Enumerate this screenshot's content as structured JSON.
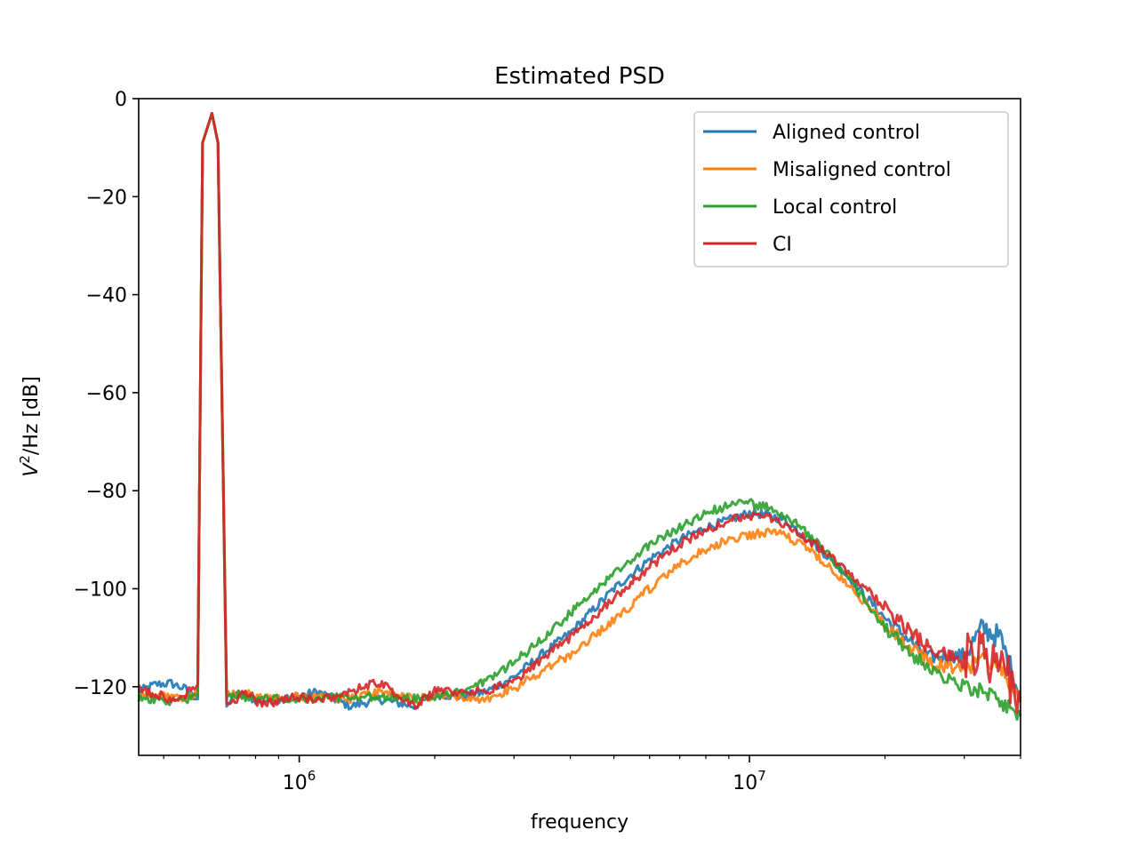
{
  "chart_data": {
    "type": "line",
    "title": "Estimated PSD",
    "xlabel": "frequency",
    "ylabel": "V²/Hz [dB]",
    "ylabel_parts": {
      "base": "V",
      "sup": "2",
      "rest": "/Hz [dB]"
    },
    "xscale": "log",
    "xlim": [
      440000,
      40000000
    ],
    "ylim": [
      -134,
      0
    ],
    "grid": false,
    "legend_position": "top-right",
    "x_major_ticks": [
      {
        "value": 1000000,
        "base": "10",
        "exp": "6"
      },
      {
        "value": 10000000,
        "base": "10",
        "exp": "7"
      }
    ],
    "y_ticks": [
      0,
      -20,
      -40,
      -60,
      -80,
      -100,
      -120
    ],
    "y_tick_labels": [
      "0",
      "−20",
      "−40",
      "−60",
      "−80",
      "−100",
      "−120"
    ],
    "series": [
      {
        "name": "Aligned control",
        "color": "#1f77b4",
        "x": [
          440000,
          480000,
          520000,
          560000,
          595000,
          610000,
          640000,
          660000,
          690000,
          720000,
          760000,
          820000,
          900000,
          1000000,
          1100000,
          1300000,
          1500000,
          1800000,
          2000000,
          2300000,
          2600000,
          3000000,
          3500000,
          4000000,
          5000000,
          6000000,
          7000000,
          8000000,
          9000000,
          10000000,
          11000000,
          12000000,
          14000000,
          16000000,
          20000000,
          25000000,
          30000000,
          33000000,
          36000000,
          40000000
        ],
        "y": [
          -121,
          -119.5,
          -119.3,
          -120.5,
          -122.5,
          -9,
          -3,
          -9,
          -124,
          -121.5,
          -122,
          -123,
          -122.5,
          -122,
          -121,
          -124,
          -122.5,
          -124,
          -121.5,
          -122,
          -121,
          -118,
          -113,
          -109,
          -100,
          -94,
          -90,
          -87.5,
          -86,
          -84.5,
          -85,
          -86,
          -91,
          -96,
          -106,
          -114,
          -113.5,
          -108,
          -110,
          -122
        ]
      },
      {
        "name": "Misaligned control",
        "color": "#ff7f0e",
        "x": [
          440000,
          480000,
          520000,
          560000,
          595000,
          610000,
          640000,
          660000,
          690000,
          720000,
          760000,
          820000,
          900000,
          1000000,
          1100000,
          1300000,
          1500000,
          1800000,
          2000000,
          2300000,
          2600000,
          3000000,
          3500000,
          4000000,
          5000000,
          6000000,
          7000000,
          8000000,
          9000000,
          10000000,
          11000000,
          12000000,
          14000000,
          16000000,
          20000000,
          25000000,
          30000000,
          33000000,
          36000000,
          40000000
        ],
        "y": [
          -121.5,
          -121.5,
          -122.5,
          -122,
          -121.5,
          -9,
          -3,
          -9,
          -121,
          -121,
          -121.5,
          -122,
          -122.5,
          -122,
          -122,
          -122.5,
          -121,
          -122.5,
          -122,
          -122,
          -122.5,
          -120.5,
          -116.5,
          -113.5,
          -106.5,
          -100,
          -95,
          -92,
          -90,
          -89,
          -88.5,
          -89,
          -93,
          -98,
          -107,
          -115,
          -117,
          -114,
          -116,
          -123
        ]
      },
      {
        "name": "Local control",
        "color": "#2ca02c",
        "x": [
          440000,
          480000,
          520000,
          560000,
          595000,
          610000,
          640000,
          660000,
          690000,
          720000,
          760000,
          820000,
          900000,
          1000000,
          1100000,
          1300000,
          1500000,
          1800000,
          2000000,
          2300000,
          2600000,
          3000000,
          3500000,
          4000000,
          5000000,
          6000000,
          7000000,
          8000000,
          9000000,
          10000000,
          11000000,
          12000000,
          14000000,
          16000000,
          20000000,
          25000000,
          30000000,
          33000000,
          36000000,
          40000000
        ],
        "y": [
          -122.5,
          -122.8,
          -123,
          -122.5,
          -122,
          -9,
          -3,
          -9,
          -122,
          -121.5,
          -122,
          -122.5,
          -122,
          -122.5,
          -122,
          -122.5,
          -122,
          -122.5,
          -122,
          -121,
          -119,
          -115,
          -110,
          -105,
          -97,
          -91,
          -87.5,
          -84.5,
          -83,
          -82.5,
          -83.5,
          -85,
          -90,
          -96,
          -108,
          -116.5,
          -120,
          -121,
          -123,
          -126
        ]
      },
      {
        "name": "CI",
        "color": "#d62728",
        "x": [
          440000,
          480000,
          520000,
          560000,
          595000,
          610000,
          640000,
          660000,
          690000,
          720000,
          760000,
          820000,
          900000,
          1000000,
          1100000,
          1300000,
          1500000,
          1800000,
          2000000,
          2300000,
          2600000,
          3000000,
          3500000,
          4000000,
          5000000,
          6000000,
          7000000,
          8000000,
          9000000,
          10000000,
          11000000,
          12000000,
          14000000,
          16000000,
          20000000,
          25000000,
          30000000,
          33000000,
          36000000,
          40000000
        ],
        "y": [
          -120.5,
          -121.5,
          -122.5,
          -121.5,
          -119.5,
          -9,
          -3,
          -9,
          -123.5,
          -123,
          -121,
          -123.5,
          -123,
          -122,
          -123,
          -121,
          -119,
          -124,
          -121,
          -121,
          -121,
          -119,
          -114,
          -110,
          -102,
          -95.5,
          -91,
          -88,
          -86,
          -85,
          -85.5,
          -87,
          -91,
          -95,
          -104,
          -112,
          -115,
          -112,
          -116,
          -121
        ]
      }
    ]
  }
}
